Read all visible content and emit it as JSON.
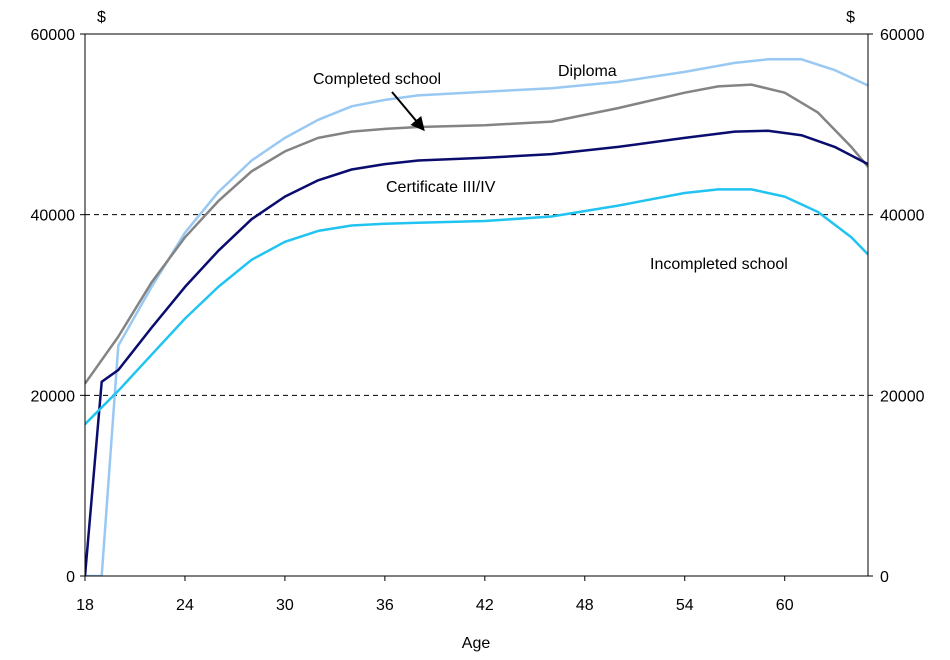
{
  "chart_data": {
    "type": "line",
    "xlabel": "Age",
    "y_unit_left": "$",
    "y_unit_right": "$",
    "xlim": [
      18,
      65
    ],
    "ylim": [
      0,
      60000
    ],
    "x_ticks": [
      18,
      24,
      30,
      36,
      42,
      48,
      54,
      60
    ],
    "y_ticks": [
      0,
      20000,
      40000,
      60000
    ],
    "grid": "horizontal dashed",
    "series": [
      {
        "name": "Diploma",
        "color": "#99c9f2",
        "points": [
          [
            18,
            0
          ],
          [
            19,
            0
          ],
          [
            20,
            25500
          ],
          [
            22,
            32000
          ],
          [
            24,
            38000
          ],
          [
            26,
            42500
          ],
          [
            28,
            46000
          ],
          [
            30,
            48500
          ],
          [
            32,
            50500
          ],
          [
            34,
            52000
          ],
          [
            36,
            52700
          ],
          [
            38,
            53200
          ],
          [
            42,
            53600
          ],
          [
            46,
            54000
          ],
          [
            50,
            54700
          ],
          [
            54,
            55800
          ],
          [
            57,
            56800
          ],
          [
            59,
            57200
          ],
          [
            61,
            57200
          ],
          [
            63,
            56000
          ],
          [
            65,
            54300
          ]
        ]
      },
      {
        "name": "Completed school",
        "color": "#848484",
        "points": [
          [
            18,
            21300
          ],
          [
            20,
            26500
          ],
          [
            22,
            32500
          ],
          [
            24,
            37500
          ],
          [
            26,
            41500
          ],
          [
            28,
            44800
          ],
          [
            30,
            47000
          ],
          [
            32,
            48500
          ],
          [
            34,
            49200
          ],
          [
            36,
            49500
          ],
          [
            38,
            49700
          ],
          [
            42,
            49900
          ],
          [
            46,
            50300
          ],
          [
            50,
            51800
          ],
          [
            54,
            53500
          ],
          [
            56,
            54200
          ],
          [
            58,
            54400
          ],
          [
            60,
            53500
          ],
          [
            62,
            51300
          ],
          [
            64,
            47500
          ],
          [
            65,
            45300
          ]
        ]
      },
      {
        "name": "Certificate III/IV",
        "color": "#0b0d6e",
        "points": [
          [
            18,
            0
          ],
          [
            19,
            21500
          ],
          [
            20,
            22800
          ],
          [
            22,
            27500
          ],
          [
            24,
            32000
          ],
          [
            26,
            36000
          ],
          [
            28,
            39500
          ],
          [
            30,
            42000
          ],
          [
            32,
            43800
          ],
          [
            34,
            45000
          ],
          [
            36,
            45600
          ],
          [
            38,
            46000
          ],
          [
            42,
            46300
          ],
          [
            46,
            46700
          ],
          [
            50,
            47500
          ],
          [
            54,
            48500
          ],
          [
            57,
            49200
          ],
          [
            59,
            49300
          ],
          [
            61,
            48800
          ],
          [
            63,
            47500
          ],
          [
            65,
            45600
          ]
        ]
      },
      {
        "name": "Incompleted school",
        "color": "#21c4f0",
        "points": [
          [
            18,
            16800
          ],
          [
            20,
            20500
          ],
          [
            22,
            24500
          ],
          [
            24,
            28500
          ],
          [
            26,
            32000
          ],
          [
            28,
            35000
          ],
          [
            30,
            37000
          ],
          [
            32,
            38200
          ],
          [
            34,
            38800
          ],
          [
            36,
            39000
          ],
          [
            38,
            39100
          ],
          [
            42,
            39300
          ],
          [
            46,
            39800
          ],
          [
            50,
            41000
          ],
          [
            54,
            42400
          ],
          [
            56,
            42800
          ],
          [
            58,
            42800
          ],
          [
            60,
            42000
          ],
          [
            62,
            40300
          ],
          [
            64,
            37500
          ],
          [
            65,
            35600
          ]
        ]
      }
    ],
    "labels": {
      "diploma": "Diploma",
      "completed_school": "Completed school",
      "certificate": "Certificate III/IV",
      "incompleted_school": "Incompleted school"
    }
  }
}
